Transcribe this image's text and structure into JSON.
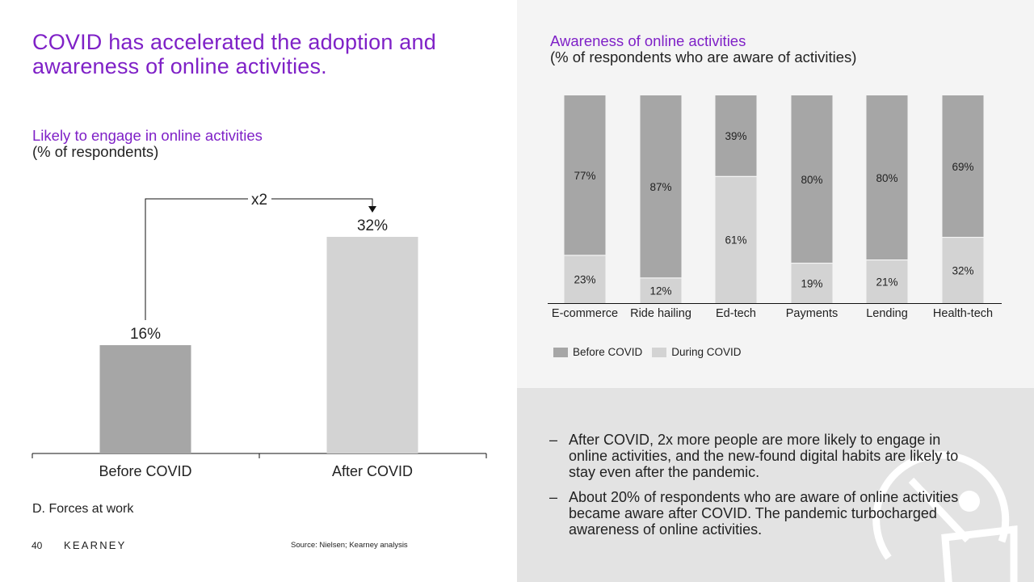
{
  "slide": {
    "title": "COVID has accelerated the adoption and awareness of online activities.",
    "footer_section": "D. Forces at work",
    "page_number": "40",
    "logo": "KEARNEY",
    "source": "Source: Nielsen; Kearney analysis"
  },
  "colors": {
    "accent": "#7f21c7",
    "before": "#a6a6a6",
    "during": "#d3d3d3"
  },
  "left_chart": {
    "title": "Likely to engage in online activities",
    "subtitle": "(% of respondents)",
    "multiplier": "x2"
  },
  "right_chart": {
    "title": "Awareness of online activities",
    "subtitle": "(% of respondents who are aware of activities)"
  },
  "legend": {
    "before": "Before COVID",
    "during": "During COVID"
  },
  "bullets": [
    "After COVID, 2x more people are more likely to engage in online activities, and the new-found digital habits are likely to stay even after the pandemic.",
    "About 20% of respondents who are aware of online activities became aware after COVID. The pandemic turbocharged awareness of online activities."
  ],
  "chart_data": [
    {
      "type": "bar",
      "categories": [
        "Before COVID",
        "After COVID"
      ],
      "values": [
        16,
        32
      ],
      "labels": [
        "16%",
        "32%"
      ],
      "title": "Likely to engage in online activities",
      "ylabel": "(% of respondents)",
      "annotation": "x2",
      "ylim": [
        0,
        32
      ]
    },
    {
      "type": "bar",
      "stacked": true,
      "categories": [
        "E-commerce",
        "Ride hailing",
        "Ed-tech",
        "Payments",
        "Lending",
        "Health-tech"
      ],
      "series": [
        {
          "name": "Before COVID",
          "values": [
            77,
            87,
            39,
            80,
            80,
            69
          ]
        },
        {
          "name": "During COVID",
          "values": [
            23,
            12,
            61,
            19,
            21,
            32
          ]
        }
      ],
      "title": "Awareness of online activities",
      "ylabel": "(% of respondents who are aware of activities)",
      "legend": "bottom-left",
      "ylim": [
        0,
        100
      ]
    }
  ]
}
